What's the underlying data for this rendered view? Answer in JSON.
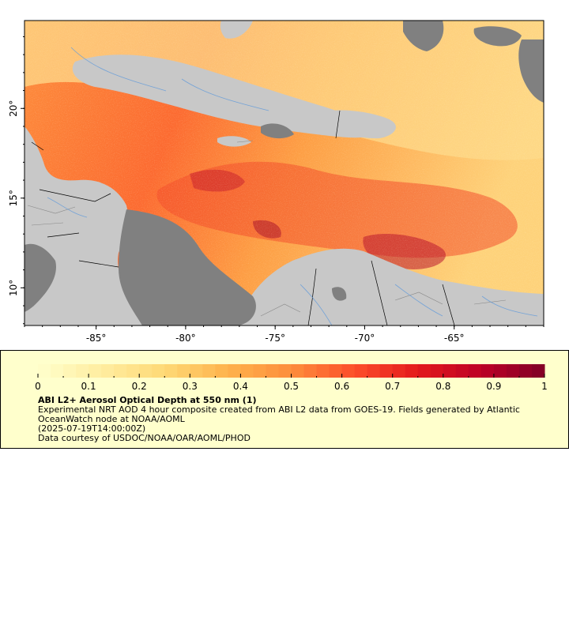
{
  "map": {
    "lon_ticks": [
      {
        "value": -85,
        "label": "-85°"
      },
      {
        "value": -80,
        "label": "-80°"
      },
      {
        "value": -75,
        "label": "-75°"
      },
      {
        "value": -70,
        "label": "-70°"
      },
      {
        "value": -65,
        "label": "-65°"
      }
    ],
    "lat_ticks": [
      {
        "value": 10,
        "label": "10°"
      },
      {
        "value": 15,
        "label": "15°"
      },
      {
        "value": 20,
        "label": "20°"
      }
    ],
    "lon_range": [
      -89,
      -60
    ],
    "lat_range": [
      7.9,
      24.9
    ],
    "colors": {
      "land": "#c8c8c8",
      "no_data": "#808080",
      "border": "#000000",
      "river": "#6a9fd8"
    }
  },
  "colorbar": {
    "ticks": [
      "0",
      "0.1",
      "0.2",
      "0.3",
      "0.4",
      "0.5",
      "0.6",
      "0.7",
      "0.8",
      "0.9",
      "1"
    ],
    "range": [
      0,
      1
    ],
    "colors": [
      "#ffffcc",
      "#ffeda0",
      "#fed976",
      "#feb24c",
      "#fd8d3c",
      "#fc4e2a",
      "#e31a1c",
      "#bd0026",
      "#800026"
    ]
  },
  "legend": {
    "title": "ABI L2+ Aerosol Optical Depth at 550 nm (1)",
    "description": "Experimental NRT AOD 4 hour composite created from ABI L2 data from GOES-19. Fields generated by Atlantic OceanWatch node at NOAA/AOML",
    "time": "(2025-07-19T14:00:00Z)",
    "credit": "Data courtesy of USDOC/NOAA/OAR/AOML/PHOD"
  }
}
